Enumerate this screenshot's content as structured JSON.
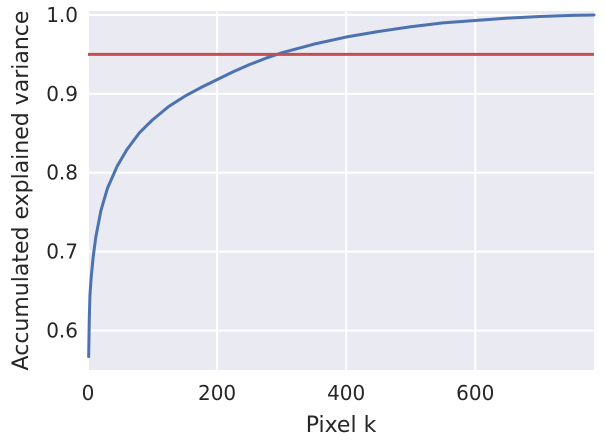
{
  "chart_data": {
    "type": "line",
    "title": "",
    "xlabel": "Pixel k",
    "ylabel": "Accumulated explained variance",
    "xlim": [
      0,
      784
    ],
    "ylim": [
      0.55,
      1.005
    ],
    "xticks": [
      0,
      200,
      400,
      600
    ],
    "xtick_labels": [
      "0",
      "200",
      "400",
      "600"
    ],
    "yticks": [
      0.6,
      0.7,
      0.8,
      0.9,
      1.0
    ],
    "ytick_labels": [
      "0.6",
      "0.7",
      "0.8",
      "0.9",
      "1.0"
    ],
    "grid": true,
    "background_color": "#eaeaf2",
    "grid_color": "#ffffff",
    "series": [
      {
        "type": "line",
        "color": "#4c72b0",
        "x": [
          1,
          2,
          3,
          5,
          8,
          12,
          20,
          30,
          45,
          60,
          80,
          100,
          125,
          150,
          175,
          200,
          225,
          250,
          275,
          300,
          350,
          400,
          450,
          500,
          550,
          600,
          650,
          700,
          750,
          784
        ],
        "y": [
          0.567,
          0.615,
          0.645,
          0.668,
          0.693,
          0.718,
          0.752,
          0.78,
          0.808,
          0.829,
          0.851,
          0.867,
          0.884,
          0.897,
          0.908,
          0.918,
          0.928,
          0.937,
          0.945,
          0.952,
          0.963,
          0.972,
          0.979,
          0.985,
          0.99,
          0.993,
          0.996,
          0.998,
          0.9995,
          1.0
        ]
      },
      {
        "type": "hline",
        "color": "#c44e52",
        "y": 0.95
      }
    ]
  }
}
